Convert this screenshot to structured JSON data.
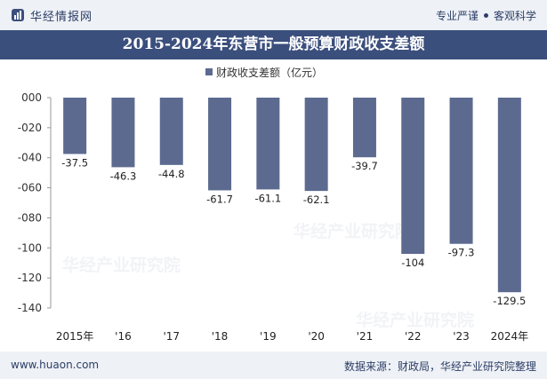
{
  "header": {
    "brand": "华经情报网",
    "tags": [
      "专业严谨",
      "客观科学"
    ]
  },
  "footer": {
    "site": "www.huaon.com",
    "source": "数据来源：财政局，华经产业研究院整理"
  },
  "watermark": "华经产业研究院",
  "colors": {
    "bar": "#5d6a90",
    "titlebar": "#3b4f7d",
    "band": "#eef1f6"
  },
  "chart_data": {
    "type": "bar",
    "title": "2015-2024年东营市一般预算财政收支差额",
    "categories": [
      "2015年",
      "'16",
      "'17",
      "'18",
      "'19",
      "'20",
      "'21",
      "'22",
      "'23",
      "2024年"
    ],
    "series": [
      {
        "name": "财政收支差额（亿元）",
        "values": [
          -37.5,
          -46.3,
          -44.8,
          -61.7,
          -61.1,
          -62.1,
          -39.7,
          -104,
          -97.3,
          -129.5
        ]
      }
    ],
    "data_labels": [
      "-37.5",
      "-46.3",
      "-44.8",
      "-61.7",
      "-61.1",
      "-62.1",
      "-39.7",
      "-104",
      "-97.3",
      "-129.5"
    ],
    "y_ticks": [
      "000",
      "-020",
      "-040",
      "-060",
      "-080",
      "-100",
      "-120",
      "-140"
    ],
    "ylim": [
      -140,
      0
    ],
    "grid": false,
    "legend_position": "top-center"
  }
}
